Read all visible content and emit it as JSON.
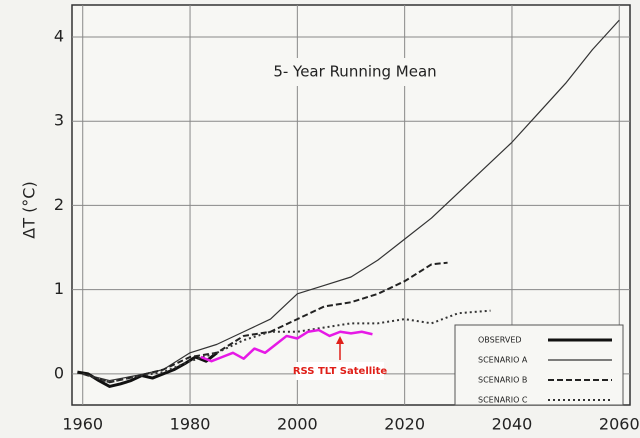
{
  "chart_data": {
    "type": "line",
    "title": "5- Year  Running  Mean",
    "y_label": "ΔT (°C)",
    "annotation": "RSS TLT Satellite",
    "xlim": [
      1958,
      2062
    ],
    "xticks": [
      1960,
      1980,
      2000,
      2020,
      2040,
      2060
    ],
    "ylim": [
      -0.37,
      4.38
    ],
    "yticks": [
      0,
      1,
      2,
      3,
      4
    ],
    "grid": true,
    "legend": "lower right",
    "series": [
      {
        "name": "OBSERVED",
        "color": "#111111",
        "dash": "solid",
        "width": 3,
        "legend": true,
        "x": [
          1959,
          1961,
          1963,
          1965,
          1967,
          1969,
          1971,
          1973,
          1975,
          1977,
          1979,
          1981,
          1983,
          1985
        ],
        "values": [
          0.02,
          0.0,
          -0.08,
          -0.15,
          -0.12,
          -0.08,
          -0.02,
          -0.05,
          0.0,
          0.05,
          0.12,
          0.2,
          0.15,
          0.25
        ]
      },
      {
        "name": "SCENARIO A",
        "color": "#333333",
        "dash": "solid",
        "width": 1.2,
        "legend": true,
        "x": [
          1960,
          1965,
          1970,
          1975,
          1980,
          1985,
          1990,
          1995,
          2000,
          2005,
          2010,
          2015,
          2020,
          2025,
          2030,
          2035,
          2040,
          2045,
          2050,
          2055,
          2060
        ],
        "values": [
          0.0,
          -0.08,
          -0.02,
          0.05,
          0.25,
          0.35,
          0.5,
          0.65,
          0.95,
          1.05,
          1.15,
          1.35,
          1.6,
          1.85,
          2.15,
          2.45,
          2.75,
          3.1,
          3.45,
          3.85,
          4.2
        ]
      },
      {
        "name": "SCENARIO B",
        "color": "#222222",
        "dash": "dashed",
        "width": 2,
        "legend": true,
        "x": [
          1960,
          1965,
          1970,
          1975,
          1980,
          1985,
          1990,
          1995,
          2000,
          2005,
          2010,
          2015,
          2020,
          2025,
          2028
        ],
        "values": [
          0.0,
          -0.1,
          -0.03,
          0.05,
          0.2,
          0.25,
          0.45,
          0.5,
          0.65,
          0.8,
          0.85,
          0.95,
          1.1,
          1.3,
          1.32
        ]
      },
      {
        "name": "SCENARIO C",
        "color": "#333333",
        "dash": "dotted",
        "width": 2,
        "legend": true,
        "x": [
          1960,
          1965,
          1970,
          1975,
          1980,
          1985,
          1990,
          1995,
          2000,
          2005,
          2010,
          2015,
          2020,
          2025,
          2030,
          2036
        ],
        "values": [
          0.0,
          -0.1,
          -0.03,
          0.02,
          0.15,
          0.25,
          0.4,
          0.5,
          0.5,
          0.55,
          0.6,
          0.6,
          0.65,
          0.6,
          0.72,
          0.75
        ]
      },
      {
        "name": "RSS TLT Satellite",
        "color": "#e619e6",
        "dash": "solid",
        "width": 2.5,
        "legend": false,
        "x": [
          1982,
          1984,
          1986,
          1988,
          1990,
          1992,
          1994,
          1996,
          1998,
          2000,
          2002,
          2004,
          2006,
          2008,
          2010,
          2012,
          2014
        ],
        "values": [
          0.2,
          0.15,
          0.2,
          0.25,
          0.18,
          0.3,
          0.25,
          0.35,
          0.45,
          0.42,
          0.5,
          0.52,
          0.45,
          0.5,
          0.48,
          0.5,
          0.47
        ]
      }
    ]
  }
}
